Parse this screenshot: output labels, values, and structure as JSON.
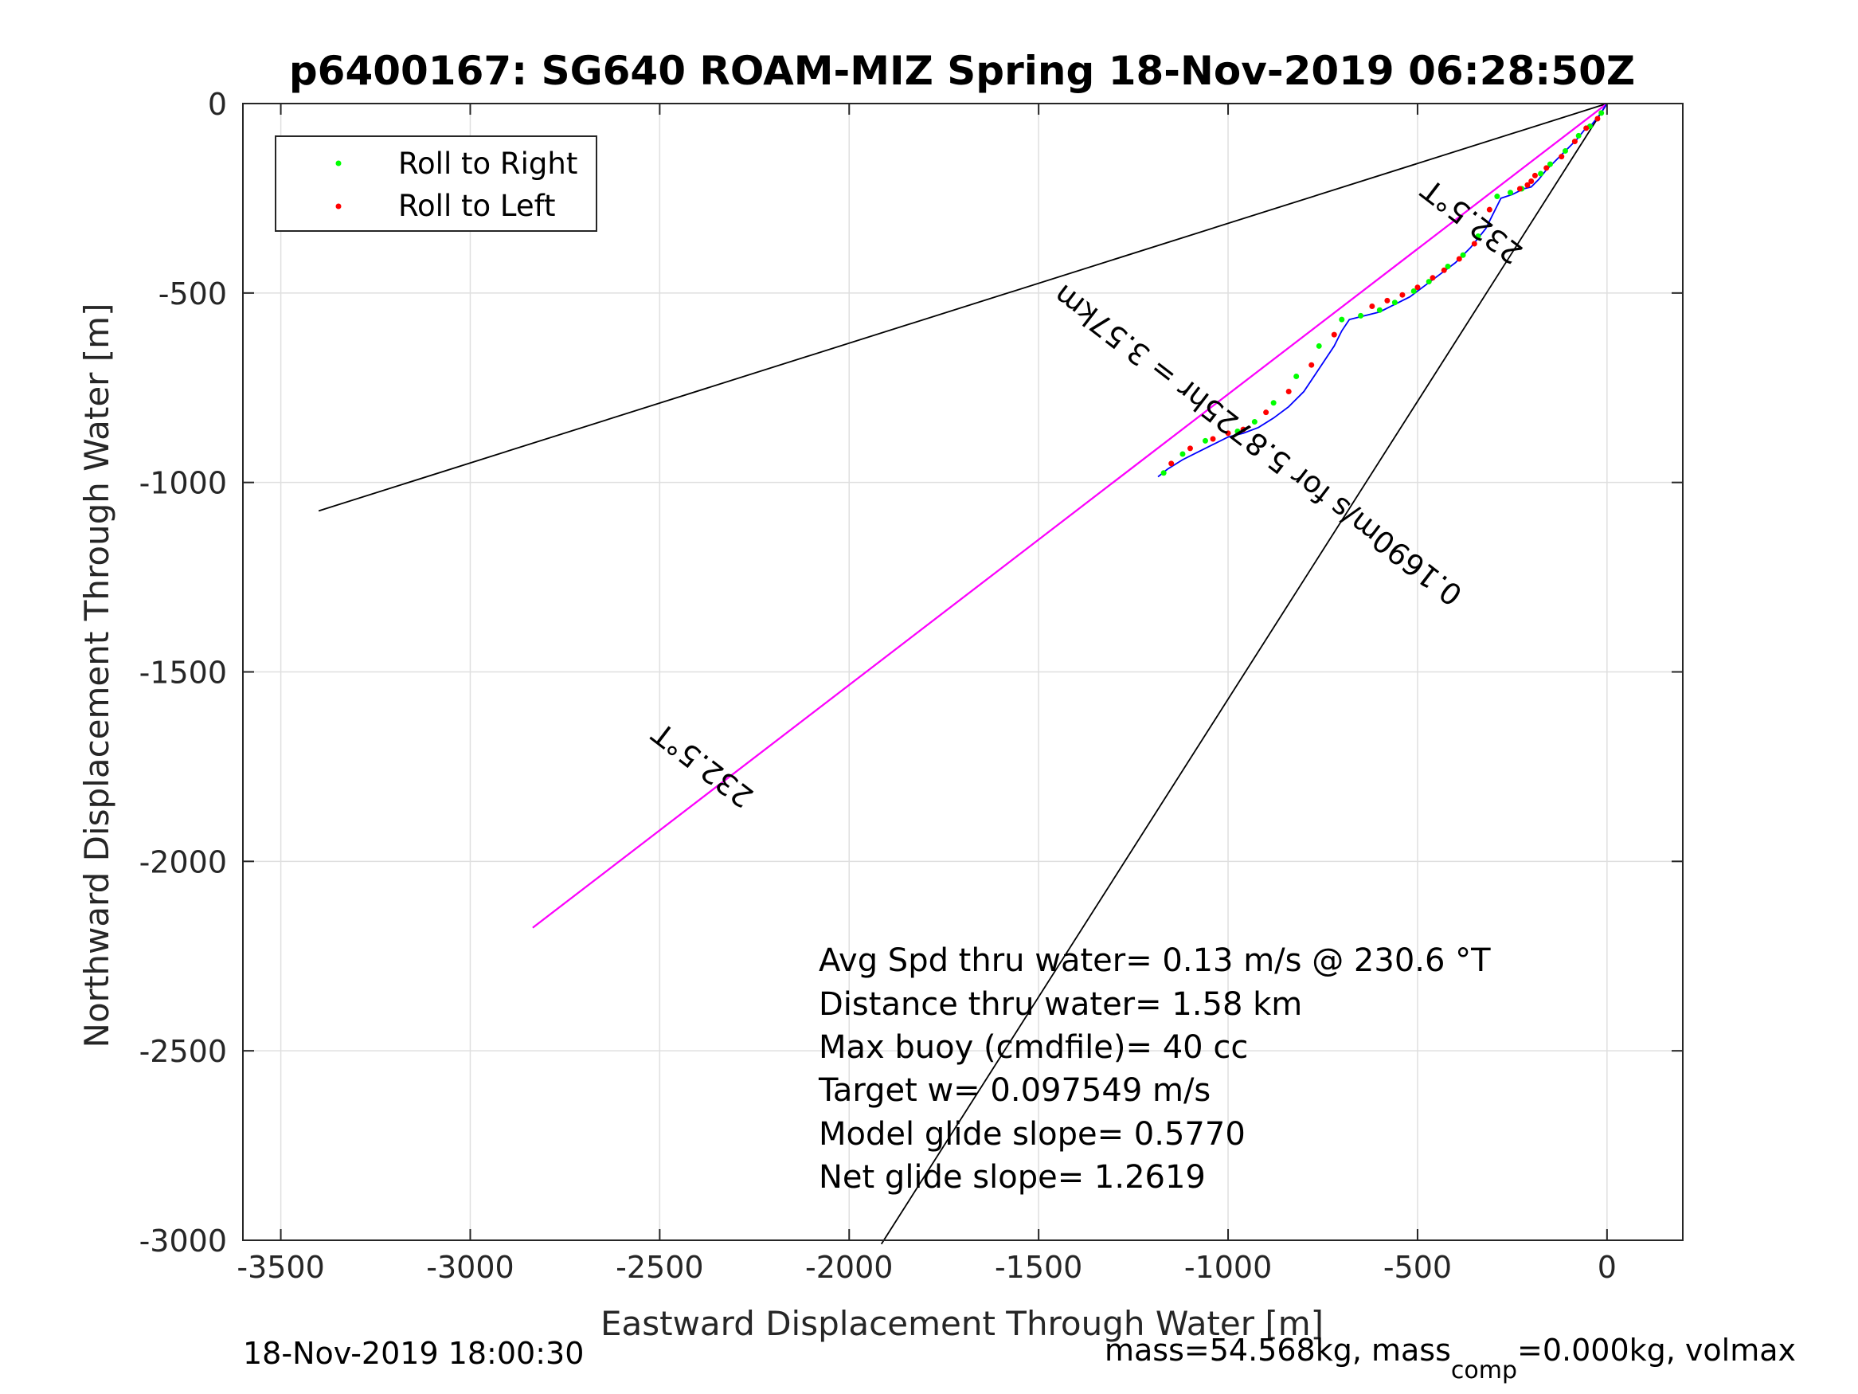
{
  "chart_data": {
    "type": "scatter",
    "title": "p6400167: SG640 ROAM-MIZ Spring 18-Nov-2019 06:28:50Z",
    "xlabel": "Eastward Displacement Through Water [m]",
    "ylabel": "Northward Displacement Through Water [m]",
    "xlim": [
      -3600,
      200
    ],
    "ylim": [
      -3000,
      0
    ],
    "xticks": [
      -3500,
      -3000,
      -2500,
      -2000,
      -1500,
      -1000,
      -500,
      0
    ],
    "yticks": [
      0,
      -500,
      -1000,
      -1500,
      -2000,
      -2500,
      -3000
    ],
    "xtick_labels": [
      "-3500",
      "-3000",
      "-2500",
      "-2000",
      "-1500",
      "-1000",
      "-500",
      "0"
    ],
    "ytick_labels": [
      "0",
      "-500",
      "-1000",
      "-1500",
      "-2000",
      "-2500",
      "-3000"
    ],
    "grid": true,
    "legend": {
      "placement": "top-left",
      "entries": [
        {
          "label": "Roll to Right",
          "color": "#00ff00"
        },
        {
          "label": "Roll to Left",
          "color": "#ff0000"
        }
      ]
    },
    "lines": [
      {
        "kind": "bound-upper",
        "color": "#000000",
        "x": [
          0,
          -3400
        ],
        "y": [
          0,
          -1075
        ]
      },
      {
        "kind": "bound-lower",
        "color": "#000000",
        "x": [
          0,
          -1915
        ],
        "y": [
          0,
          -3010
        ]
      },
      {
        "kind": "heading-black",
        "color": "#000000",
        "x": [
          0,
          -2835
        ],
        "y": [
          0,
          -2175
        ]
      },
      {
        "kind": "heading-magenta",
        "color": "#ff00ff",
        "x": [
          0,
          -2835
        ],
        "y": [
          0,
          -2175
        ]
      }
    ],
    "track": {
      "color": "#0000ff",
      "x": [
        0,
        -20,
        -40,
        -60,
        -80,
        -100,
        -120,
        -140,
        -160,
        -180,
        -200,
        -220,
        -250,
        -280,
        -300,
        -320,
        -360,
        -400,
        -440,
        -480,
        -520,
        -560,
        -600,
        -640,
        -680,
        -700,
        -720,
        -760,
        -800,
        -840,
        -880,
        -920,
        -960,
        -1000,
        -1040,
        -1080,
        -1120,
        -1160,
        -1185
      ],
      "y": [
        0,
        -30,
        -55,
        -70,
        -95,
        -115,
        -135,
        -155,
        -175,
        -200,
        -220,
        -225,
        -240,
        -250,
        -290,
        -330,
        -380,
        -420,
        -450,
        -480,
        -510,
        -530,
        -550,
        -560,
        -570,
        -600,
        -640,
        -700,
        -760,
        -800,
        -830,
        -855,
        -870,
        -880,
        -900,
        -920,
        -940,
        -965,
        -985
      ]
    },
    "roll_right": {
      "color": "#00ff00",
      "x": [
        -15,
        -45,
        -75,
        -110,
        -150,
        -175,
        -225,
        -255,
        -290,
        -340,
        -380,
        -420,
        -470,
        -510,
        -560,
        -600,
        -650,
        -700,
        -760,
        -820,
        -880,
        -930,
        -975,
        -1060,
        -1120,
        -1170
      ],
      "y": [
        -25,
        -60,
        -85,
        -125,
        -160,
        -185,
        -225,
        -235,
        -245,
        -350,
        -400,
        -430,
        -470,
        -495,
        -525,
        -545,
        -560,
        -570,
        -640,
        -720,
        -790,
        -840,
        -865,
        -890,
        -925,
        -975
      ]
    },
    "roll_left": {
      "color": "#ff0000",
      "x": [
        -25,
        -55,
        -85,
        -120,
        -160,
        -190,
        -200,
        -210,
        -230,
        -310,
        -350,
        -390,
        -430,
        -460,
        -500,
        -540,
        -580,
        -620,
        -720,
        -780,
        -840,
        -900,
        -960,
        -1000,
        -1040,
        -1100,
        -1150
      ],
      "y": [
        -40,
        -65,
        -100,
        -140,
        -170,
        -190,
        -205,
        -215,
        -225,
        -280,
        -370,
        -410,
        -440,
        -460,
        -485,
        -505,
        -520,
        -535,
        -610,
        -690,
        -760,
        -815,
        -860,
        -870,
        -885,
        -910,
        -950
      ]
    },
    "rotated_labels": [
      {
        "text": "232.5°T",
        "x": -340,
        "y": -290,
        "angle": 217.5
      },
      {
        "text": "0.1690m/s for 5.8725hr = 3.57km",
        "x": -905,
        "y": -880,
        "angle": 217.5
      },
      {
        "text": "232.5°T",
        "x": -2370,
        "y": -1725,
        "angle": 217.5
      }
    ],
    "annotations": [
      "Avg Spd thru water=  0.13 m/s @ 230.6 °T",
      "Distance thru water=  1.58 km",
      "Max buoy (cmdfile)= 40 cc",
      "Target w= 0.097549 m/s",
      "Model glide slope= 0.5770",
      "Net glide slope= 1.2619"
    ]
  },
  "footer": {
    "left": "18-Nov-2019 18:00:30",
    "right_main": "mass=54.568kg, mass",
    "right_sub": "comp",
    "right_tail": "=0.000kg, volmax"
  }
}
